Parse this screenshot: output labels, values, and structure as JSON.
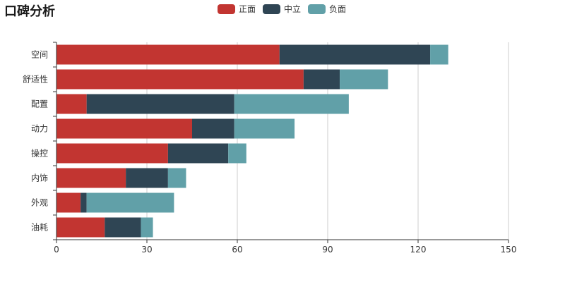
{
  "chart_data": {
    "type": "bar",
    "orientation": "horizontal",
    "stacked": true,
    "title": "口碑分析",
    "categories": [
      "空间",
      "舒适性",
      "配置",
      "动力",
      "操控",
      "内饰",
      "外观",
      "油耗"
    ],
    "series": [
      {
        "name": "正面",
        "color": "#c23531",
        "values": [
          74,
          82,
          10,
          45,
          37,
          23,
          8,
          16
        ]
      },
      {
        "name": "中立",
        "color": "#2f4554",
        "values": [
          50,
          12,
          49,
          14,
          20,
          14,
          2,
          12
        ]
      },
      {
        "name": "负面",
        "color": "#61a0a8",
        "values": [
          6,
          16,
          38,
          20,
          6,
          6,
          29,
          4
        ]
      }
    ],
    "xlim": [
      0,
      150
    ],
    "xticks": [
      0,
      30,
      60,
      90,
      120,
      150
    ],
    "grid": true,
    "legend": "top-center"
  }
}
